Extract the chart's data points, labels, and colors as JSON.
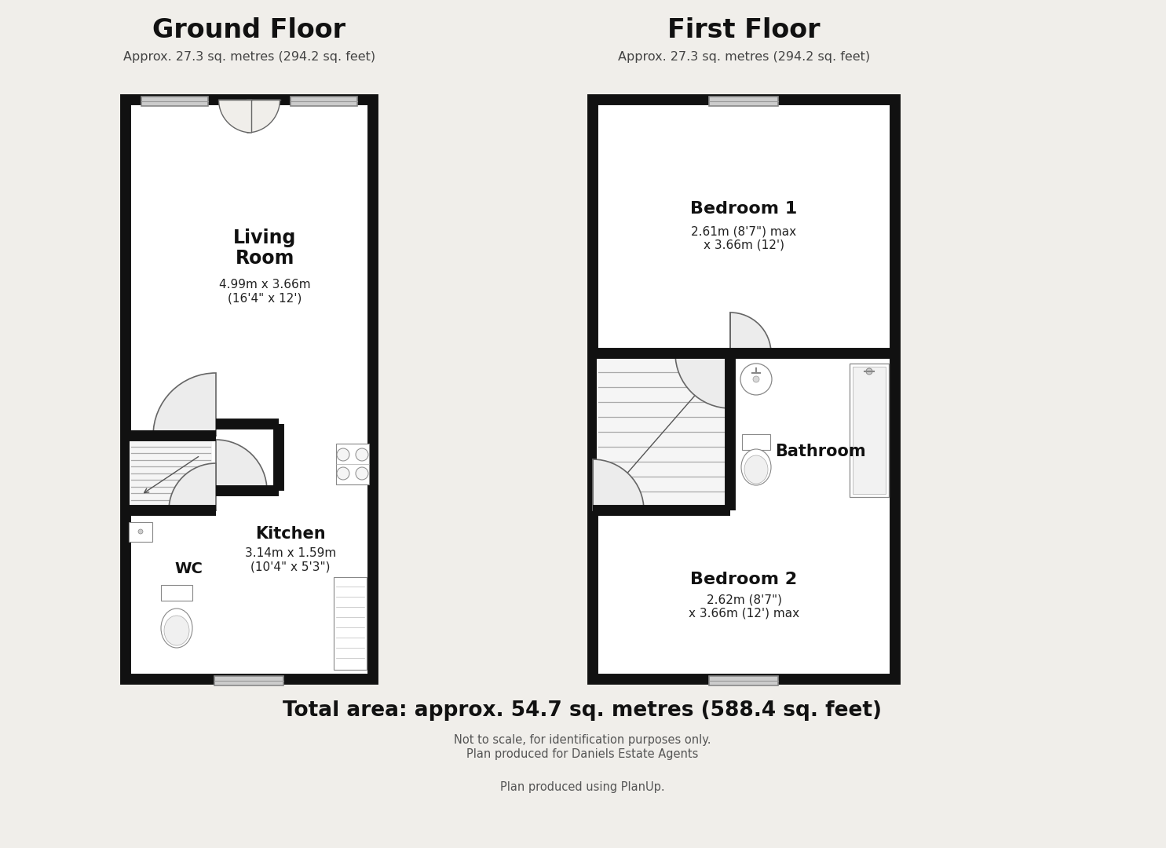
{
  "bg_color": "#f0eeea",
  "wall_color": "#111111",
  "floor_color": "#ffffff",
  "door_color": "#e8e8e8",
  "stair_color": "#dddddd",
  "line_color": "#666666",
  "title_ground": "Ground Floor",
  "subtitle_ground": "Approx. 27.3 sq. metres (294.2 sq. feet)",
  "title_first": "First Floor",
  "subtitle_first": "Approx. 27.3 sq. metres (294.2 sq. feet)",
  "living_room_label": "Living\nRoom",
  "living_room_dims": "4.99m x 3.66m\n(16'4\" x 12')",
  "kitchen_label": "Kitchen",
  "kitchen_dims": "3.14m x 1.59m\n(10'4\" x 5'3\")",
  "wc_label": "WC",
  "bedroom1_label": "Bedroom 1",
  "bedroom1_dims": "2.61m (8'7\") max\nx 3.66m (12')",
  "bathroom_label": "Bathroom",
  "bedroom2_label": "Bedroom 2",
  "bedroom2_dims": "2.62m (8'7\")\nx 3.66m (12') max",
  "footer1": "Total area: approx. 54.7 sq. metres (588.4 sq. feet)",
  "footer2a": "Not to scale, for identification purposes only.",
  "footer2b": "Plan produced for Daniels Estate Agents",
  "footer3": "Plan produced using PlanUp."
}
